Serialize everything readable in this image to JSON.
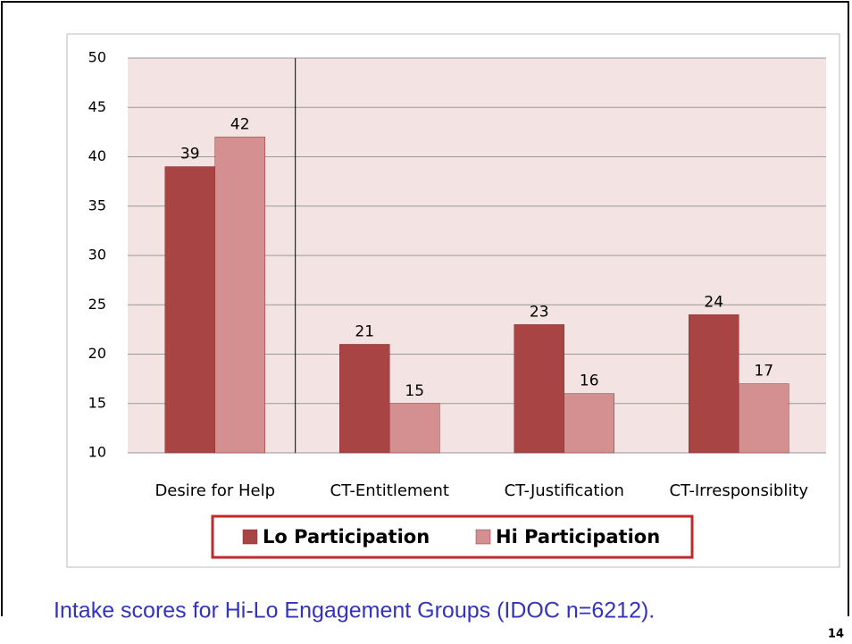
{
  "chart_data": {
    "type": "bar",
    "categories": [
      "Desire for Help",
      "CT-Entitlement",
      "CT-Justification",
      "CT-Irresponsiblity"
    ],
    "series": [
      {
        "name": "Lo Participation",
        "color": "#a84444",
        "values": [
          39,
          21,
          23,
          24
        ]
      },
      {
        "name": "Hi Participation",
        "color": "#d49090",
        "values": [
          42,
          15,
          16,
          17
        ]
      }
    ],
    "ylim": [
      10,
      50
    ],
    "yticks": [
      10,
      15,
      20,
      25,
      30,
      35,
      40,
      45,
      50
    ],
    "grid": true,
    "legend": "bottom",
    "caption": "Intake scores for Hi-Lo Engagement Groups (IDOC n=6212).",
    "page_number": "14"
  }
}
